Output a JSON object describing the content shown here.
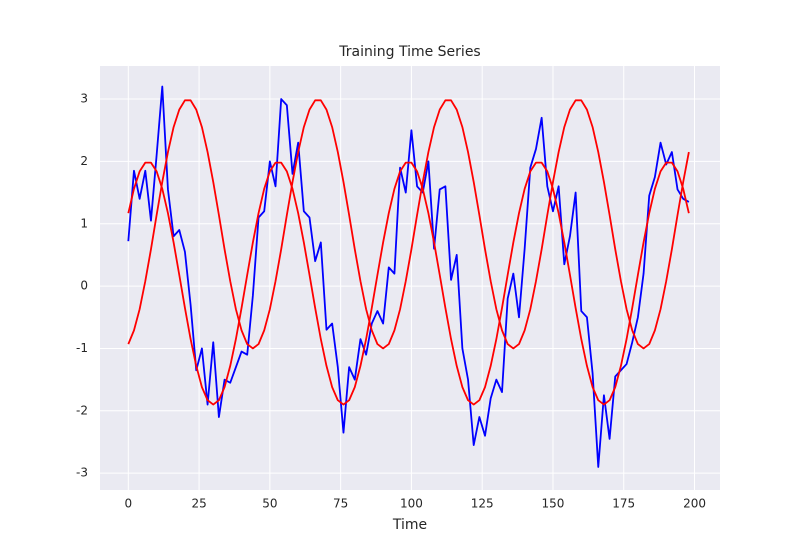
{
  "chart_data": {
    "type": "line",
    "title": "Training Time Series",
    "xlabel": "Time",
    "x": [
      0,
      2,
      4,
      6,
      8,
      10,
      12,
      14,
      16,
      18,
      20,
      22,
      24,
      26,
      28,
      30,
      32,
      34,
      36,
      38,
      40,
      42,
      44,
      46,
      48,
      50,
      52,
      54,
      56,
      58,
      60,
      62,
      64,
      66,
      68,
      70,
      72,
      74,
      76,
      78,
      80,
      82,
      84,
      86,
      88,
      90,
      92,
      94,
      96,
      98,
      100,
      102,
      104,
      106,
      108,
      110,
      112,
      114,
      116,
      118,
      120,
      122,
      124,
      126,
      128,
      130,
      132,
      134,
      136,
      138,
      140,
      142,
      144,
      146,
      148,
      150,
      152,
      154,
      156,
      158,
      160,
      162,
      164,
      166,
      168,
      170,
      172,
      174,
      176,
      178,
      180,
      182,
      184,
      186,
      188,
      190,
      192,
      194,
      196,
      198
    ],
    "series": [
      {
        "color": "#0000ff",
        "values": [
          0.72,
          1.85,
          1.4,
          1.85,
          1.05,
          2.1,
          3.2,
          1.55,
          0.8,
          0.9,
          0.55,
          -0.3,
          -1.35,
          -1.0,
          -1.9,
          -0.9,
          -2.1,
          -1.5,
          -1.55,
          -1.3,
          -1.05,
          -1.1,
          -0.15,
          1.1,
          1.2,
          2.0,
          1.6,
          3.0,
          2.9,
          1.8,
          2.3,
          1.2,
          1.1,
          0.4,
          0.7,
          -0.7,
          -0.6,
          -1.3,
          -2.35,
          -1.3,
          -1.5,
          -0.85,
          -1.1,
          -0.6,
          -0.4,
          -0.6,
          0.3,
          0.2,
          1.9,
          1.5,
          2.5,
          1.6,
          1.5,
          2.0,
          0.6,
          1.55,
          1.6,
          0.1,
          0.5,
          -1.0,
          -1.5,
          -2.55,
          -2.1,
          -2.4,
          -1.8,
          -1.5,
          -1.7,
          -0.2,
          0.2,
          -0.5,
          0.6,
          1.9,
          2.2,
          2.7,
          1.6,
          1.2,
          1.6,
          0.35,
          0.8,
          1.5,
          -0.4,
          -0.5,
          -1.4,
          -2.9,
          -1.75,
          -2.45,
          -1.45,
          -1.35,
          -1.25,
          -0.9,
          -0.5,
          0.2,
          1.45,
          1.75,
          2.3,
          1.95,
          2.15,
          1.55,
          1.4,
          1.35
        ]
      },
      {
        "color": "#ff0000",
        "values": [
          -0.93,
          -0.71,
          -0.37,
          0.08,
          0.59,
          1.14,
          1.67,
          2.15,
          2.55,
          2.83,
          2.98,
          2.98,
          2.83,
          2.55,
          2.15,
          1.67,
          1.14,
          0.59,
          0.08,
          -0.37,
          -0.71,
          -0.93,
          -1.0,
          -0.93,
          -0.71,
          -0.37,
          0.08,
          0.59,
          1.14,
          1.67,
          2.15,
          2.55,
          2.83,
          2.98,
          2.98,
          2.83,
          2.55,
          2.15,
          1.67,
          1.14,
          0.59,
          0.08,
          -0.37,
          -0.71,
          -0.93,
          -1.0,
          -0.93,
          -0.71,
          -0.37,
          0.08,
          0.59,
          1.14,
          1.67,
          2.15,
          2.55,
          2.83,
          2.98,
          2.98,
          2.83,
          2.55,
          2.15,
          1.67,
          1.14,
          0.59,
          0.08,
          -0.37,
          -0.71,
          -0.93,
          -1.0,
          -0.93,
          -0.71,
          -0.37,
          0.08,
          0.59,
          1.14,
          1.67,
          2.15,
          2.55,
          2.83,
          2.98,
          2.98,
          2.83,
          2.55,
          2.15,
          1.67,
          1.14,
          0.59,
          0.08,
          -0.37,
          -0.71,
          -0.93,
          -1.0,
          -0.93,
          -0.71,
          -0.37,
          0.08,
          0.59,
          1.14,
          1.67,
          2.15
        ]
      },
      {
        "color": "#ff0000",
        "values": [
          1.17,
          1.56,
          1.84,
          1.98,
          1.98,
          1.84,
          1.56,
          1.17,
          0.7,
          0.18,
          -0.35,
          -0.85,
          -1.28,
          -1.62,
          -1.83,
          -1.9,
          -1.83,
          -1.62,
          -1.28,
          -0.85,
          -0.35,
          0.18,
          0.7,
          1.17,
          1.56,
          1.84,
          1.98,
          1.98,
          1.84,
          1.56,
          1.17,
          0.7,
          0.18,
          -0.35,
          -0.85,
          -1.28,
          -1.62,
          -1.83,
          -1.9,
          -1.83,
          -1.62,
          -1.28,
          -0.85,
          -0.35,
          0.18,
          0.7,
          1.17,
          1.56,
          1.84,
          1.98,
          1.98,
          1.84,
          1.56,
          1.17,
          0.7,
          0.18,
          -0.35,
          -0.85,
          -1.28,
          -1.62,
          -1.83,
          -1.9,
          -1.83,
          -1.62,
          -1.28,
          -0.85,
          -0.35,
          0.18,
          0.7,
          1.17,
          1.56,
          1.84,
          1.98,
          1.98,
          1.84,
          1.56,
          1.17,
          0.7,
          0.18,
          -0.35,
          -0.85,
          -1.28,
          -1.62,
          -1.83,
          -1.9,
          -1.83,
          -1.62,
          -1.28,
          -0.85,
          -0.35,
          0.18,
          0.7,
          1.17,
          1.56,
          1.84,
          1.98,
          1.98,
          1.84,
          1.56,
          1.17
        ]
      }
    ],
    "xlim": [
      -10,
      209
    ],
    "ylim": [
      -3.27,
      3.53
    ],
    "xticks": [
      0,
      25,
      50,
      75,
      100,
      125,
      150,
      175,
      200
    ],
    "yticks": [
      -3,
      -2,
      -1,
      0,
      1,
      2,
      3
    ],
    "grid": true
  }
}
